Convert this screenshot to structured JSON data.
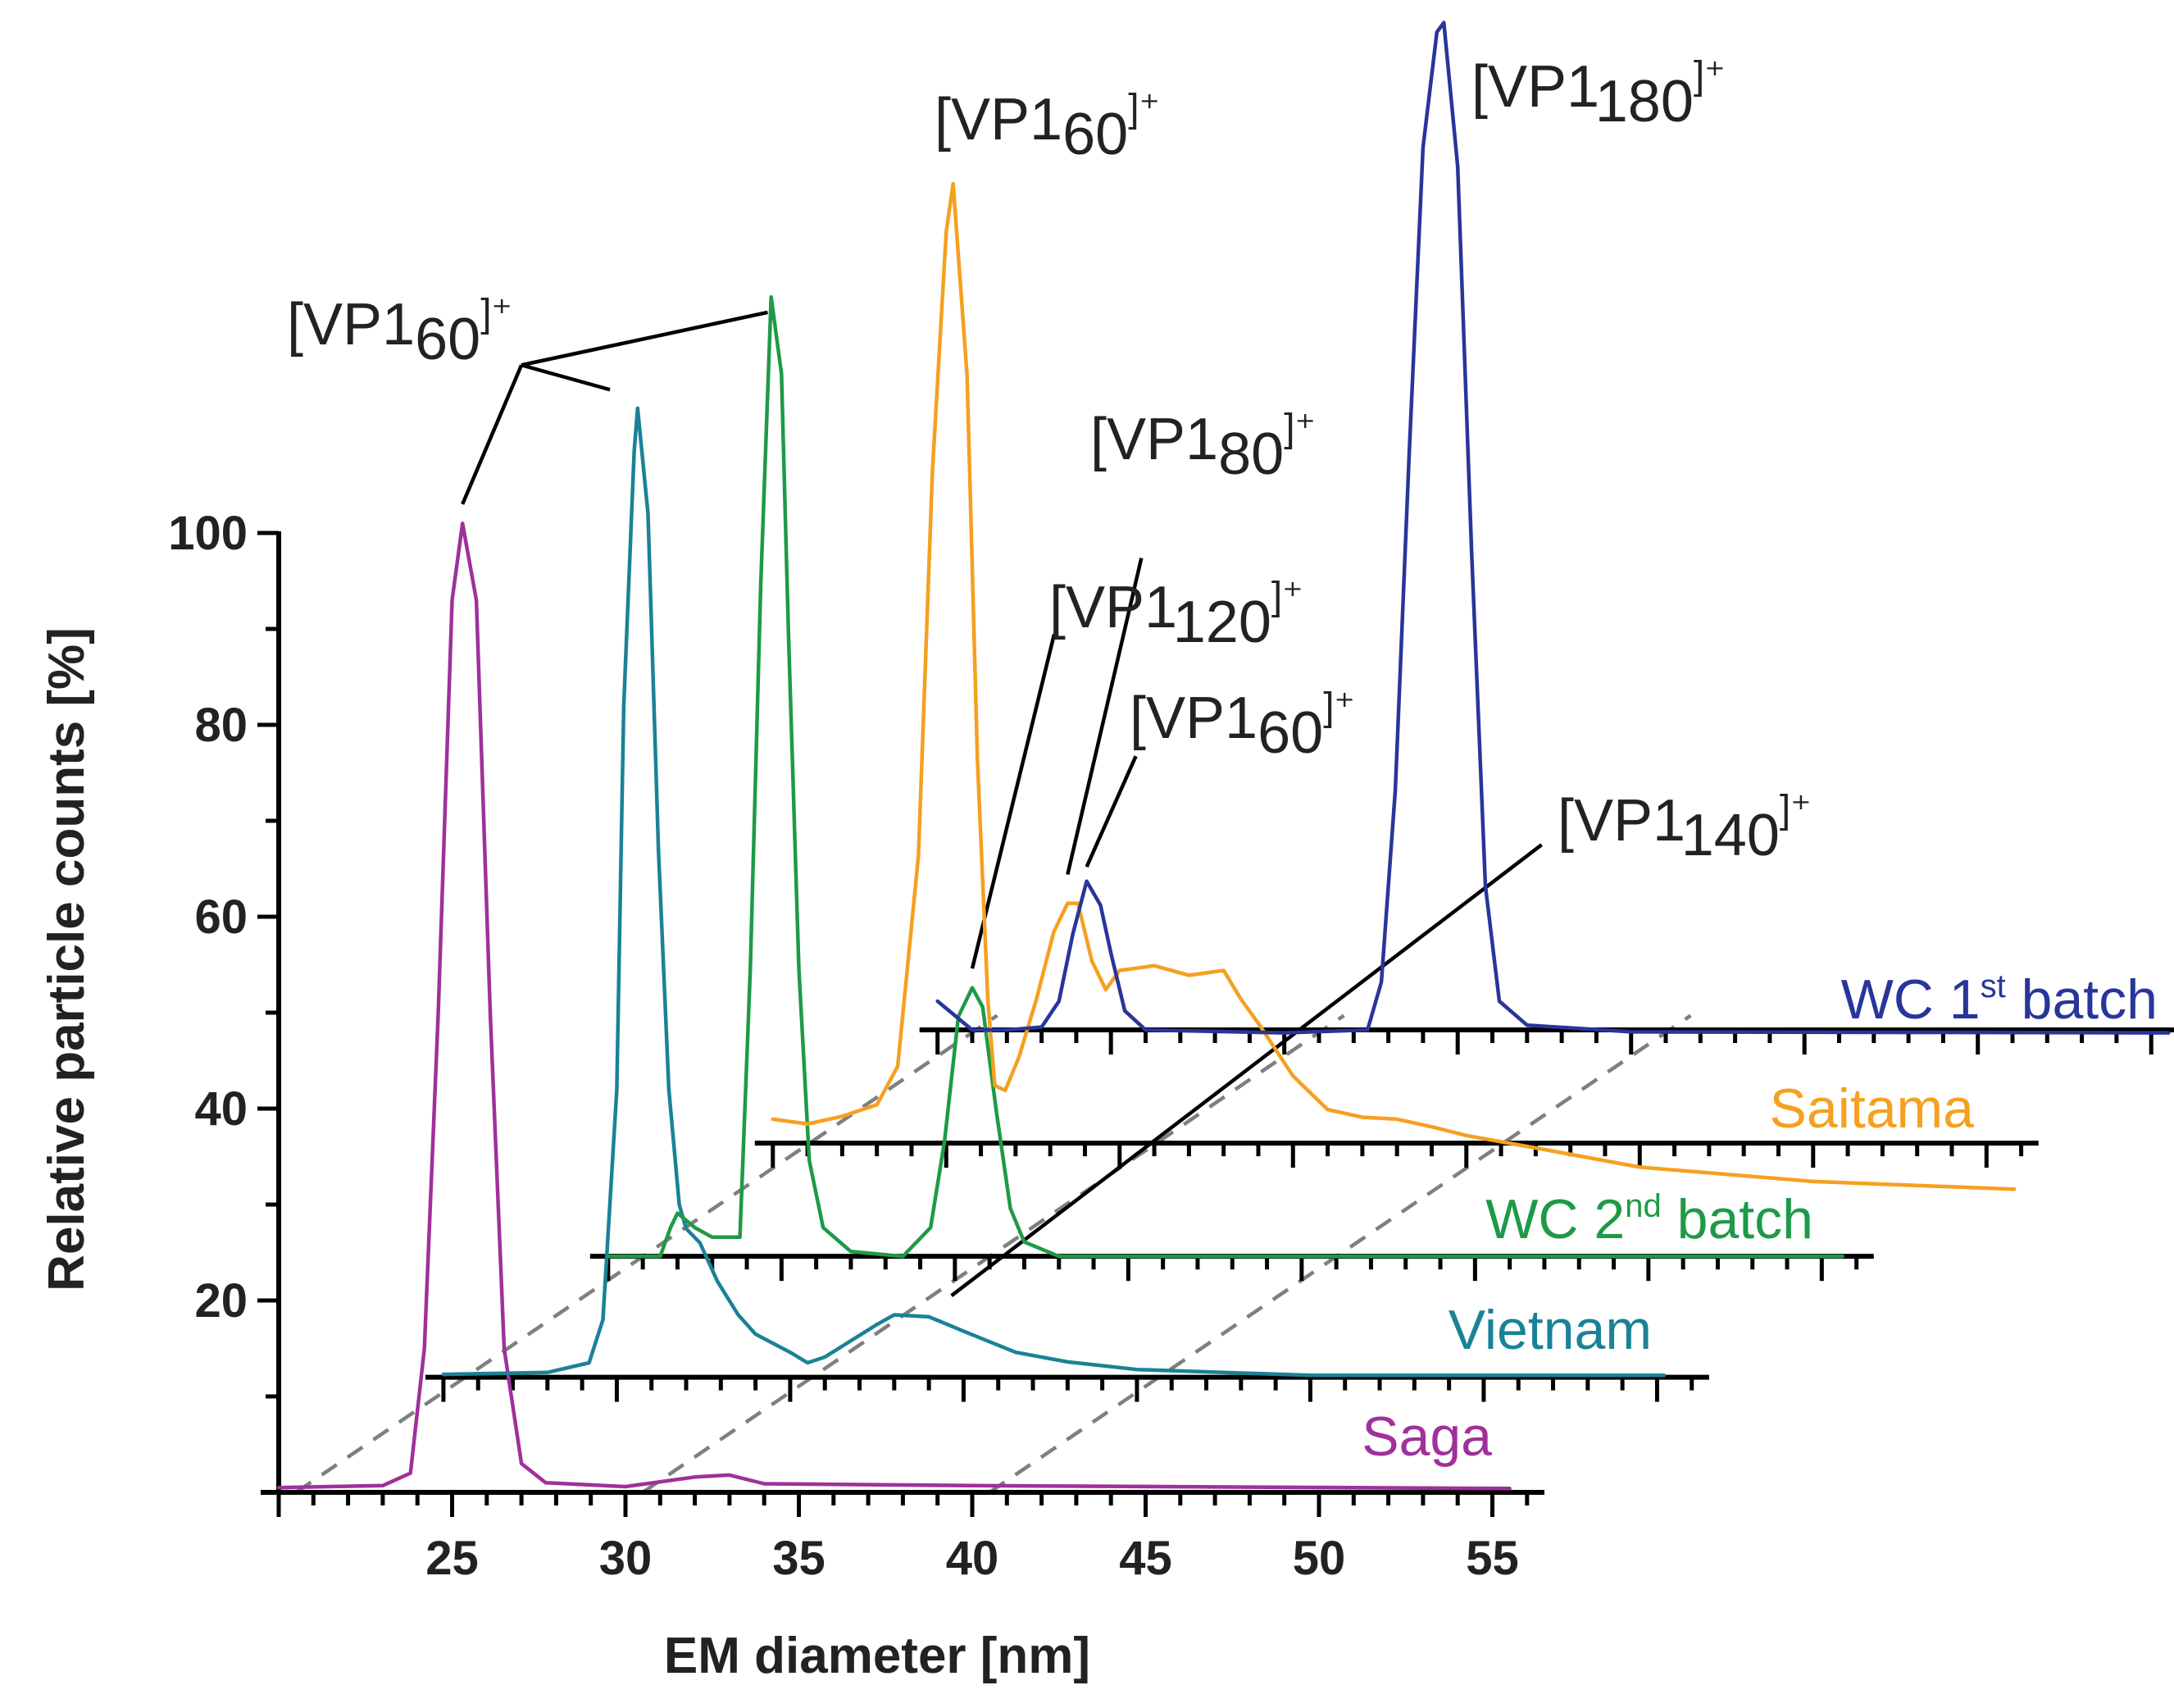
{
  "chart_data": {
    "type": "line",
    "style": "staggered 3D waterfall (each series on its own offset baseline)",
    "xlabel": "EM diameter [nm]",
    "ylabel": "Relative particle counts [%]",
    "xlim": [
      20,
      56
    ],
    "ylim": [
      0,
      100
    ],
    "x_ticks": [
      25,
      30,
      35,
      40,
      45,
      50,
      55
    ],
    "y_ticks": [
      20,
      40,
      60,
      80,
      100
    ],
    "x_tick_labels": [
      "25",
      "30",
      "35",
      "40",
      "45",
      "50",
      "55"
    ],
    "y_tick_labels": [
      "20",
      "40",
      "60",
      "80",
      "100"
    ],
    "series": [
      {
        "name": "Saga",
        "color": "#a0309a",
        "x_shift_nm": 0,
        "baseline": 0,
        "x_range": [
          20,
          55.5
        ],
        "points": [
          [
            20,
            0.5
          ],
          [
            23,
            0.7
          ],
          [
            23.8,
            2
          ],
          [
            24.2,
            15
          ],
          [
            24.6,
            50
          ],
          [
            25,
            93
          ],
          [
            25.3,
            101
          ],
          [
            25.7,
            93
          ],
          [
            26.1,
            50
          ],
          [
            26.5,
            15
          ],
          [
            27,
            3
          ],
          [
            27.7,
            1
          ],
          [
            30,
            0.6
          ],
          [
            32,
            1.6
          ],
          [
            33,
            1.8
          ],
          [
            34,
            0.9
          ],
          [
            40,
            0.7
          ],
          [
            55.5,
            0.4
          ]
        ]
      },
      {
        "name": "Vietnam",
        "color": "#1a8296",
        "x_shift_nm": 4.75,
        "baseline": 12,
        "x_range": [
          20,
          55.2
        ],
        "points": [
          [
            20,
            0.3
          ],
          [
            23,
            0.5
          ],
          [
            24.2,
            1.5
          ],
          [
            24.6,
            6
          ],
          [
            25,
            30
          ],
          [
            25.2,
            70
          ],
          [
            25.5,
            96.5
          ],
          [
            25.6,
            101
          ],
          [
            25.9,
            90
          ],
          [
            26.2,
            55
          ],
          [
            26.5,
            30
          ],
          [
            26.8,
            18
          ],
          [
            27,
            15.5
          ],
          [
            27.4,
            14
          ],
          [
            27.9,
            10
          ],
          [
            28.5,
            6.5
          ],
          [
            29,
            4.5
          ],
          [
            30,
            2.6
          ],
          [
            30.5,
            1.5
          ],
          [
            31,
            2.1
          ],
          [
            32.5,
            5.5
          ],
          [
            33,
            6.5
          ],
          [
            34,
            6.3
          ],
          [
            35,
            4.8
          ],
          [
            36.5,
            2.6
          ],
          [
            38,
            1.6
          ],
          [
            40,
            0.8
          ],
          [
            45,
            0.2
          ],
          [
            55.2,
            0.2
          ]
        ]
      },
      {
        "name": "WC 2nd batch",
        "color": "#1e9a46",
        "x_shift_nm": 9.5,
        "baseline": 24.6,
        "x_range": [
          20,
          55.6
        ],
        "points": [
          [
            20,
            0
          ],
          [
            21.5,
            0
          ],
          [
            21.8,
            3
          ],
          [
            22,
            4.5
          ],
          [
            22.5,
            3
          ],
          [
            23,
            2
          ],
          [
            23.8,
            2
          ],
          [
            24.1,
            30
          ],
          [
            24.4,
            70
          ],
          [
            24.7,
            100
          ],
          [
            25,
            92
          ],
          [
            25.2,
            65
          ],
          [
            25.5,
            30
          ],
          [
            25.8,
            10
          ],
          [
            26.2,
            3
          ],
          [
            27,
            0.5
          ],
          [
            28.5,
            0
          ],
          [
            29.3,
            3
          ],
          [
            29.7,
            12
          ],
          [
            30.1,
            25
          ],
          [
            30.5,
            28
          ],
          [
            30.8,
            26
          ],
          [
            31.2,
            15
          ],
          [
            31.6,
            5
          ],
          [
            32,
            1.5
          ],
          [
            33,
            0
          ],
          [
            40,
            0
          ],
          [
            55.6,
            0
          ]
        ]
      },
      {
        "name": "Saitama",
        "color": "#f5a020",
        "x_shift_nm": 14.25,
        "baseline": 36.4,
        "x_range": [
          20,
          55.8
        ],
        "points": [
          [
            20,
            2.5
          ],
          [
            21,
            2
          ],
          [
            22,
            2.8
          ],
          [
            23,
            4
          ],
          [
            23.6,
            8
          ],
          [
            24.2,
            30
          ],
          [
            24.6,
            70
          ],
          [
            25,
            95
          ],
          [
            25.2,
            100
          ],
          [
            25.6,
            80
          ],
          [
            25.9,
            40
          ],
          [
            26.2,
            15
          ],
          [
            26.4,
            6
          ],
          [
            26.7,
            5.5
          ],
          [
            27.1,
            9
          ],
          [
            27.6,
            15
          ],
          [
            28.1,
            22
          ],
          [
            28.5,
            25
          ],
          [
            28.8,
            25
          ],
          [
            29.2,
            19
          ],
          [
            29.6,
            16
          ],
          [
            30,
            18
          ],
          [
            31,
            18.5
          ],
          [
            32,
            17.5
          ],
          [
            33,
            18
          ],
          [
            33.5,
            15
          ],
          [
            34,
            12.5
          ],
          [
            35,
            7
          ],
          [
            36,
            3.5
          ],
          [
            37,
            2.7
          ],
          [
            38,
            2.5
          ],
          [
            39,
            1.7
          ],
          [
            40,
            0.8
          ],
          [
            42,
            -0.5
          ],
          [
            45,
            -2.5
          ],
          [
            50,
            -4
          ],
          [
            55.8,
            -4.8
          ]
        ]
      },
      {
        "name": "WC 1st batch",
        "color": "#28359a",
        "x_shift_nm": 19,
        "baseline": 48.2,
        "x_range": [
          20,
          55.5
        ],
        "points": [
          [
            20,
            3
          ],
          [
            20.5,
            1.5
          ],
          [
            21,
            0
          ],
          [
            22,
            0
          ],
          [
            23,
            0.3
          ],
          [
            23.5,
            3
          ],
          [
            23.9,
            10
          ],
          [
            24.3,
            15.5
          ],
          [
            24.7,
            13
          ],
          [
            25,
            8
          ],
          [
            25.4,
            2
          ],
          [
            26,
            0
          ],
          [
            30,
            -0.3
          ],
          [
            32.4,
            0
          ],
          [
            32.8,
            5
          ],
          [
            33.2,
            25
          ],
          [
            33.6,
            60
          ],
          [
            34,
            92
          ],
          [
            34.4,
            104
          ],
          [
            34.6,
            105
          ],
          [
            35,
            90
          ],
          [
            35.4,
            50
          ],
          [
            35.8,
            15
          ],
          [
            36.2,
            3
          ],
          [
            37,
            0.5
          ],
          [
            40,
            -0.2
          ],
          [
            55.5,
            -0.3
          ]
        ]
      }
    ],
    "annotations": [
      {
        "base": "[VP1",
        "sub": "60",
        "sup": "]⁺",
        "target": "Saga/Vietnam/WC 2nd batch main peaks"
      },
      {
        "base": "[VP1",
        "sub": "60",
        "sup": "]⁺",
        "target": "Saitama main peak"
      },
      {
        "base": "[VP1",
        "sub": "180",
        "sup": "]⁺",
        "target": "WC 1st batch main peak"
      },
      {
        "base": "[VP1",
        "sub": "80",
        "sup": "]⁺",
        "target": "Saitama second peak"
      },
      {
        "base": "[VP1",
        "sub": "120",
        "sup": "]⁺",
        "target": "WC 2nd batch second peak"
      },
      {
        "base": "[VP1",
        "sub": "60",
        "sup": "]⁺",
        "target": "WC 1st batch small peak"
      },
      {
        "base": "[VP1",
        "sub": "140",
        "sup": "]⁺",
        "target": "Vietnam shoulder peak"
      }
    ],
    "series_labels": [
      {
        "name": "Saga",
        "text": "Saga"
      },
      {
        "name": "Vietnam",
        "text": "Vietnam"
      },
      {
        "name": "WC 2nd batch",
        "base": "WC 2",
        "sup": "nd",
        "rest": " batch"
      },
      {
        "name": "Saitama",
        "text": "Saitama"
      },
      {
        "name": "WC 1st batch",
        "base": "WC 1",
        "sup": "st",
        "rest": " batch"
      }
    ]
  }
}
